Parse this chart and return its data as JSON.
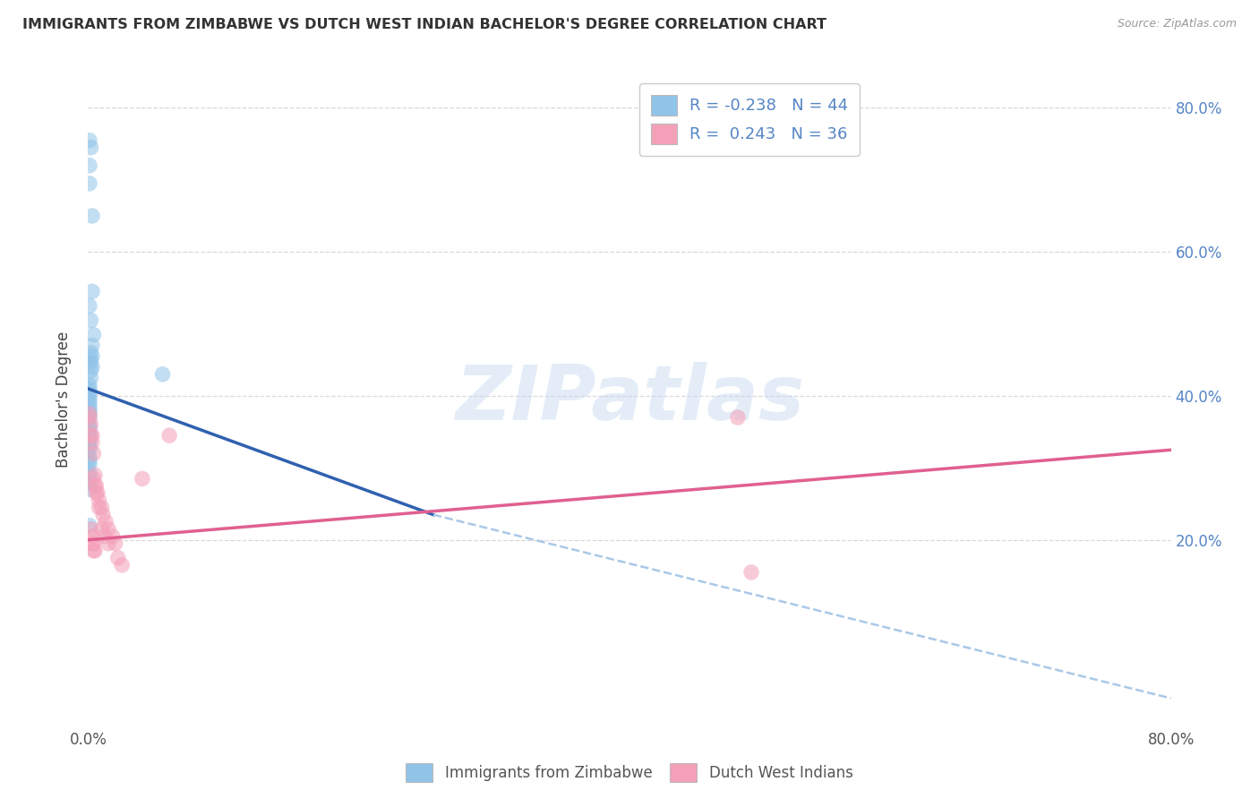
{
  "title": "IMMIGRANTS FROM ZIMBABWE VS DUTCH WEST INDIAN BACHELOR'S DEGREE CORRELATION CHART",
  "source": "Source: ZipAtlas.com",
  "ylabel": "Bachelor's Degree",
  "legend_label1": "Immigrants from Zimbabwe",
  "legend_label2": "Dutch West Indians",
  "r1": -0.238,
  "n1": 44,
  "r2": 0.243,
  "n2": 36,
  "color_blue": "#90c4e8",
  "color_pink": "#f4a0b8",
  "color_blue_line": "#3060b0",
  "color_pink_line": "#e06090",
  "color_dashed": "#aac8e8",
  "blue_dots_x": [
    0.001,
    0.002,
    0.001,
    0.001,
    0.003,
    0.003,
    0.001,
    0.002,
    0.004,
    0.003,
    0.002,
    0.003,
    0.002,
    0.002,
    0.003,
    0.002,
    0.002,
    0.001,
    0.001,
    0.001,
    0.001,
    0.001,
    0.001,
    0.001,
    0.001,
    0.001,
    0.001,
    0.001,
    0.001,
    0.001,
    0.001,
    0.001,
    0.001,
    0.001,
    0.001,
    0.001,
    0.001,
    0.001,
    0.001,
    0.001,
    0.001,
    0.001,
    0.001,
    0.055
  ],
  "blue_dots_y": [
    0.755,
    0.745,
    0.72,
    0.695,
    0.65,
    0.545,
    0.525,
    0.505,
    0.485,
    0.47,
    0.46,
    0.455,
    0.45,
    0.445,
    0.44,
    0.435,
    0.425,
    0.415,
    0.41,
    0.405,
    0.4,
    0.395,
    0.39,
    0.385,
    0.38,
    0.375,
    0.37,
    0.36,
    0.355,
    0.35,
    0.345,
    0.34,
    0.335,
    0.33,
    0.325,
    0.315,
    0.31,
    0.305,
    0.295,
    0.29,
    0.28,
    0.27,
    0.22,
    0.43
  ],
  "pink_dots_x": [
    0.001,
    0.001,
    0.002,
    0.003,
    0.004,
    0.005,
    0.006,
    0.007,
    0.008,
    0.01,
    0.011,
    0.013,
    0.015,
    0.018,
    0.02,
    0.022,
    0.025,
    0.002,
    0.003,
    0.004,
    0.005,
    0.006,
    0.008,
    0.01,
    0.012,
    0.015,
    0.002,
    0.003,
    0.004,
    0.005,
    0.48,
    0.003,
    0.004,
    0.04,
    0.06,
    0.49
  ],
  "pink_dots_y": [
    0.375,
    0.37,
    0.36,
    0.345,
    0.32,
    0.29,
    0.275,
    0.265,
    0.255,
    0.245,
    0.235,
    0.225,
    0.215,
    0.205,
    0.195,
    0.175,
    0.165,
    0.345,
    0.335,
    0.285,
    0.275,
    0.265,
    0.245,
    0.215,
    0.205,
    0.195,
    0.215,
    0.205,
    0.195,
    0.185,
    0.37,
    0.195,
    0.185,
    0.285,
    0.345,
    0.155
  ],
  "blue_line_x0": 0.0,
  "blue_line_x1": 0.255,
  "blue_line_y0": 0.41,
  "blue_line_y1": 0.235,
  "dashed_line_x0": 0.255,
  "dashed_line_x1": 0.8,
  "dashed_line_y0": 0.235,
  "dashed_line_y1": -0.02,
  "pink_line_x0": 0.0,
  "pink_line_x1": 0.8,
  "pink_line_y0": 0.2,
  "pink_line_y1": 0.325,
  "xlim": [
    0.0,
    0.8
  ],
  "ylim": [
    -0.06,
    0.85
  ],
  "right_yticks": [
    0.2,
    0.4,
    0.6,
    0.8
  ],
  "right_ytick_labels": [
    "20.0%",
    "40.0%",
    "60.0%",
    "80.0%"
  ],
  "watermark_text": "ZIPatlas",
  "background_color": "#ffffff",
  "grid_color": "#d8d8d8"
}
